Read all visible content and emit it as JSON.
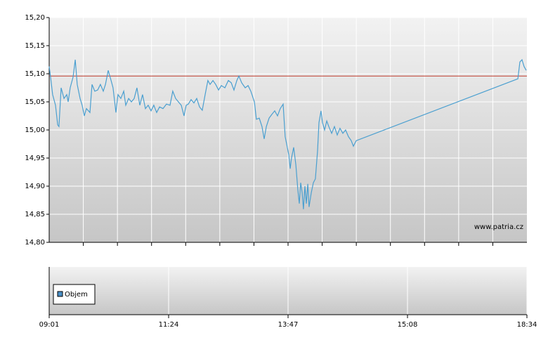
{
  "chart_data": {
    "type": "line",
    "watermark": "www.patria.cz",
    "volume_label": "Objem",
    "volume_color": "#4a90c8",
    "reference_line": 15.096,
    "reference_color": "#c0392b",
    "color": "#4a9fd0",
    "grid": true,
    "ylim": [
      14.8,
      15.2
    ],
    "yticks": [
      {
        "value": 14.8,
        "label": "14,80"
      },
      {
        "value": 14.85,
        "label": "14,85"
      },
      {
        "value": 14.9,
        "label": "14,90"
      },
      {
        "value": 14.95,
        "label": "14,95"
      },
      {
        "value": 15.0,
        "label": "15,00"
      },
      {
        "value": 15.05,
        "label": "15,05"
      },
      {
        "value": 15.1,
        "label": "15,10"
      },
      {
        "value": 15.15,
        "label": "15,15"
      },
      {
        "value": 15.2,
        "label": "15,20"
      }
    ],
    "xlim": [
      0,
      4
    ],
    "xticks": [
      {
        "value": 0,
        "label": "09:01"
      },
      {
        "value": 1,
        "label": "11:24"
      },
      {
        "value": 2,
        "label": "13:47"
      },
      {
        "value": 3,
        "label": "15:08"
      },
      {
        "value": 4,
        "label": "18:34"
      }
    ],
    "x": [
      0,
      0.012,
      0.029,
      0.053,
      0.071,
      0.082,
      0.1,
      0.124,
      0.147,
      0.159,
      0.176,
      0.2,
      0.218,
      0.235,
      0.259,
      0.276,
      0.294,
      0.312,
      0.341,
      0.359,
      0.382,
      0.406,
      0.429,
      0.453,
      0.471,
      0.494,
      0.518,
      0.535,
      0.559,
      0.576,
      0.6,
      0.624,
      0.641,
      0.665,
      0.688,
      0.712,
      0.735,
      0.759,
      0.782,
      0.806,
      0.829,
      0.853,
      0.876,
      0.9,
      0.924,
      0.953,
      0.982,
      1.012,
      1.035,
      1.059,
      1.082,
      1.106,
      1.129,
      1.147,
      1.165,
      1.188,
      1.212,
      1.235,
      1.259,
      1.282,
      1.306,
      1.329,
      1.347,
      1.371,
      1.394,
      1.418,
      1.441,
      1.471,
      1.5,
      1.524,
      1.547,
      1.571,
      1.588,
      1.612,
      1.641,
      1.665,
      1.688,
      1.718,
      1.735,
      1.759,
      1.782,
      1.8,
      1.818,
      1.841,
      1.865,
      1.888,
      1.912,
      1.935,
      1.959,
      1.976,
      1.988,
      2.006,
      2.018,
      2.029,
      2.047,
      2.065,
      2.082,
      2.094,
      2.106,
      2.118,
      2.129,
      2.141,
      2.153,
      2.165,
      2.176,
      2.194,
      2.212,
      2.229,
      2.247,
      2.259,
      2.276,
      2.288,
      2.306,
      2.324,
      2.341,
      2.365,
      2.388,
      2.412,
      2.435,
      2.459,
      2.482,
      2.506,
      2.529,
      2.547,
      2.571,
      3.924,
      3.941,
      3.959,
      3.976,
      3.994
    ],
    "values": [
      15.113,
      15.094,
      15.063,
      15.044,
      15.009,
      15.006,
      15.075,
      15.056,
      15.063,
      15.05,
      15.075,
      15.094,
      15.125,
      15.081,
      15.056,
      15.044,
      15.025,
      15.038,
      15.031,
      15.081,
      15.069,
      15.071,
      15.081,
      15.069,
      15.081,
      15.106,
      15.088,
      15.075,
      15.031,
      15.063,
      15.056,
      15.069,
      15.044,
      15.056,
      15.05,
      15.056,
      15.075,
      15.044,
      15.063,
      15.038,
      15.044,
      15.034,
      15.044,
      15.031,
      15.041,
      15.038,
      15.046,
      15.044,
      15.069,
      15.056,
      15.05,
      15.044,
      15.025,
      15.044,
      15.046,
      15.054,
      15.048,
      15.056,
      15.041,
      15.035,
      15.063,
      15.088,
      15.081,
      15.088,
      15.081,
      15.071,
      15.079,
      15.075,
      15.088,
      15.084,
      15.071,
      15.088,
      15.096,
      15.084,
      15.075,
      15.079,
      15.069,
      15.05,
      15.019,
      15.021,
      15.006,
      14.984,
      15.006,
      15.021,
      15.028,
      15.034,
      15.025,
      15.038,
      15.046,
      14.988,
      14.975,
      14.956,
      14.931,
      14.95,
      14.969,
      14.938,
      14.894,
      14.869,
      14.906,
      14.888,
      14.859,
      14.9,
      14.869,
      14.904,
      14.863,
      14.888,
      14.906,
      14.913,
      14.963,
      15.013,
      15.034,
      15.013,
      15.0,
      15.016,
      15.006,
      14.994,
      15.006,
      14.991,
      15.003,
      14.994,
      15.0,
      14.988,
      14.981,
      14.971,
      14.981,
      15.091,
      15.121,
      15.125,
      15.113,
      15.106
    ]
  }
}
